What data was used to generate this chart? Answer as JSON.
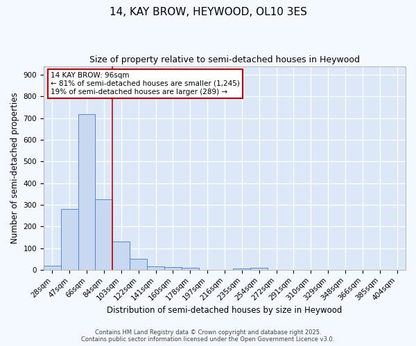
{
  "title": "14, KAY BROW, HEYWOOD, OL10 3ES",
  "subtitle": "Size of property relative to semi-detached houses in Heywood",
  "xlabel": "Distribution of semi-detached houses by size in Heywood",
  "ylabel": "Number of semi-detached properties",
  "categories": [
    "28sqm",
    "47sqm",
    "66sqm",
    "84sqm",
    "103sqm",
    "122sqm",
    "141sqm",
    "160sqm",
    "178sqm",
    "197sqm",
    "216sqm",
    "235sqm",
    "254sqm",
    "272sqm",
    "291sqm",
    "310sqm",
    "329sqm",
    "348sqm",
    "366sqm",
    "385sqm",
    "404sqm"
  ],
  "values": [
    18,
    281,
    717,
    325,
    130,
    52,
    15,
    12,
    8,
    0,
    0,
    5,
    8,
    0,
    0,
    0,
    0,
    0,
    0,
    0,
    0
  ],
  "bar_color": "#c8d8f0",
  "bar_edge_color": "#5588cc",
  "red_line_x": 3.5,
  "annotation_title": "14 KAY BROW: 96sqm",
  "annotation_line1": "← 81% of semi-detached houses are smaller (1,245)",
  "annotation_line2": "19% of semi-detached houses are larger (289) →",
  "annotation_box_color": "#ffffff",
  "annotation_box_edge": "#cc0000",
  "red_line_color": "#cc0000",
  "footer1": "Contains HM Land Registry data © Crown copyright and database right 2025.",
  "footer2": "Contains public sector information licensed under the Open Government Licence v3.0.",
  "ylim": [
    0,
    940
  ],
  "yticks": [
    0,
    100,
    200,
    300,
    400,
    500,
    600,
    700,
    800,
    900
  ],
  "bg_color": "#dce8f8",
  "grid_color": "#ffffff",
  "fig_bg_color": "#f4f8ff",
  "title_fontsize": 11,
  "subtitle_fontsize": 9,
  "axis_label_fontsize": 8.5,
  "tick_fontsize": 7.5,
  "footer_fontsize": 6,
  "annotation_fontsize": 7.5
}
